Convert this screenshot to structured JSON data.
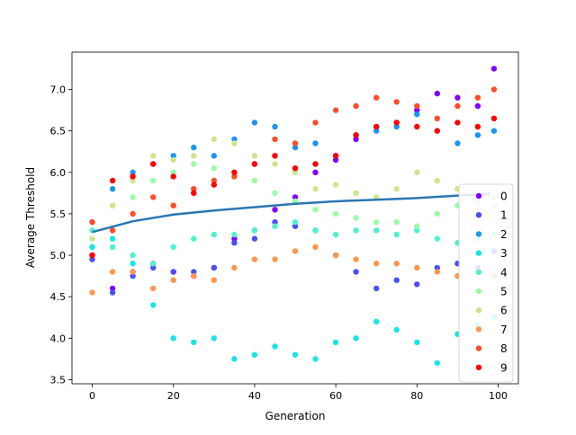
{
  "chart_data": {
    "type": "scatter",
    "title": "",
    "xlabel": "Generation",
    "ylabel": "Average Threshold",
    "xlim": [
      -5,
      105
    ],
    "ylim": [
      3.45,
      7.45
    ],
    "xticks": [
      0,
      20,
      40,
      60,
      80,
      100
    ],
    "yticks": [
      3.5,
      4.0,
      4.5,
      5.0,
      5.5,
      6.0,
      6.5,
      7.0
    ],
    "xtick_labels": [
      "0",
      "20",
      "40",
      "60",
      "80",
      "100"
    ],
    "ytick_labels": [
      "3.5",
      "4.0",
      "4.5",
      "5.0",
      "5.5",
      "6.0",
      "6.5",
      "7.0"
    ],
    "grid": false,
    "legend_position": "right",
    "trend_line": {
      "color": "#2a77b4",
      "x": [
        0,
        10,
        20,
        30,
        40,
        50,
        60,
        70,
        80,
        90,
        98
      ],
      "y": [
        5.28,
        5.41,
        5.49,
        5.54,
        5.58,
        5.62,
        5.65,
        5.67,
        5.69,
        5.72,
        5.74
      ]
    },
    "series": [
      {
        "name": "0",
        "color": "#8000ff",
        "x": [
          0,
          5,
          10,
          15,
          20,
          25,
          30,
          35,
          40,
          45,
          50,
          55,
          60,
          65,
          70,
          75,
          80,
          85,
          90,
          95,
          99
        ],
        "y": [
          5.0,
          4.6,
          4.8,
          4.9,
          4.8,
          4.75,
          4.85,
          5.2,
          5.3,
          5.55,
          5.7,
          6.0,
          6.15,
          6.4,
          6.55,
          6.6,
          6.75,
          6.95,
          6.9,
          6.8,
          7.25
        ]
      },
      {
        "name": "1",
        "color": "#4d4dfc",
        "x": [
          0,
          5,
          10,
          15,
          20,
          25,
          30,
          35,
          40,
          45,
          50,
          55,
          60,
          65,
          70,
          75,
          80,
          85,
          90,
          95,
          99
        ],
        "y": [
          4.95,
          4.55,
          4.75,
          4.85,
          4.8,
          4.8,
          4.85,
          5.15,
          5.2,
          5.4,
          5.35,
          5.3,
          5.0,
          4.8,
          4.6,
          4.7,
          4.65,
          4.85,
          4.9,
          4.85,
          5.05
        ]
      },
      {
        "name": "2",
        "color": "#1996f3",
        "x": [
          0,
          5,
          10,
          15,
          20,
          25,
          30,
          35,
          40,
          45,
          50,
          55,
          60,
          65,
          70,
          75,
          80,
          85,
          90,
          95,
          99
        ],
        "y": [
          5.1,
          5.8,
          6.0,
          6.1,
          6.2,
          6.3,
          6.2,
          6.4,
          6.6,
          6.55,
          6.3,
          6.35,
          6.2,
          6.45,
          6.5,
          6.55,
          6.7,
          6.5,
          6.35,
          6.45,
          6.5
        ]
      },
      {
        "name": "3",
        "color": "#1ae4e6",
        "x": [
          0,
          5,
          10,
          15,
          20,
          25,
          30,
          35,
          40,
          45,
          50,
          55,
          60,
          65,
          70,
          75,
          80,
          85,
          90,
          95,
          99
        ],
        "y": [
          5.1,
          5.2,
          4.9,
          4.4,
          4.0,
          3.95,
          4.0,
          3.75,
          3.8,
          3.9,
          3.8,
          3.75,
          3.95,
          4.0,
          4.2,
          4.1,
          3.95,
          3.7,
          4.05,
          4.15,
          4.25
        ]
      },
      {
        "name": "4",
        "color": "#4df3ce",
        "x": [
          0,
          5,
          10,
          15,
          20,
          25,
          30,
          35,
          40,
          45,
          50,
          55,
          60,
          65,
          70,
          75,
          80,
          85,
          90,
          95,
          99
        ],
        "y": [
          5.3,
          5.1,
          5.0,
          4.9,
          5.1,
          5.2,
          5.25,
          5.25,
          5.3,
          5.35,
          5.4,
          5.3,
          5.25,
          5.3,
          5.3,
          5.25,
          5.3,
          5.2,
          5.15,
          5.2,
          5.25
        ]
      },
      {
        "name": "5",
        "color": "#99fca6",
        "x": [
          0,
          5,
          10,
          15,
          20,
          25,
          30,
          35,
          40,
          45,
          50,
          55,
          60,
          65,
          70,
          75,
          80,
          85,
          90,
          95,
          99
        ],
        "y": [
          5.4,
          5.6,
          5.7,
          5.9,
          6.0,
          6.1,
          6.05,
          6.0,
          5.9,
          5.75,
          5.65,
          5.55,
          5.5,
          5.45,
          5.4,
          5.4,
          5.35,
          5.5,
          5.6,
          5.65,
          5.7
        ]
      },
      {
        "name": "6",
        "color": "#cce68b",
        "x": [
          0,
          5,
          10,
          15,
          20,
          25,
          30,
          35,
          40,
          45,
          50,
          55,
          60,
          65,
          70,
          75,
          80,
          85,
          90,
          95,
          99
        ],
        "y": [
          5.2,
          5.6,
          5.9,
          6.2,
          6.15,
          6.2,
          6.4,
          6.35,
          6.2,
          6.1,
          6.0,
          5.8,
          5.85,
          5.75,
          5.7,
          5.8,
          6.0,
          5.9,
          5.8,
          5.75,
          5.6
        ]
      },
      {
        "name": "7",
        "color": "#ff964f",
        "x": [
          0,
          5,
          10,
          15,
          20,
          25,
          30,
          35,
          40,
          45,
          50,
          55,
          60,
          65,
          70,
          75,
          80,
          85,
          90,
          95,
          99
        ],
        "y": [
          4.55,
          4.8,
          4.8,
          4.6,
          4.7,
          4.75,
          4.7,
          4.85,
          4.95,
          4.95,
          5.05,
          5.1,
          5.0,
          4.95,
          4.9,
          4.9,
          4.85,
          4.8,
          4.75,
          4.8,
          4.75
        ]
      },
      {
        "name": "8",
        "color": "#ff4d27",
        "x": [
          0,
          5,
          10,
          15,
          20,
          25,
          30,
          35,
          40,
          45,
          50,
          55,
          60,
          65,
          70,
          75,
          80,
          85,
          90,
          95,
          99
        ],
        "y": [
          5.4,
          5.3,
          5.5,
          5.7,
          5.6,
          5.8,
          5.9,
          5.95,
          6.1,
          6.4,
          6.35,
          6.6,
          6.75,
          6.8,
          6.9,
          6.85,
          6.8,
          6.65,
          6.8,
          6.9,
          7.0
        ]
      },
      {
        "name": "9",
        "color": "#ff0000",
        "x": [
          0,
          5,
          10,
          15,
          20,
          25,
          30,
          35,
          40,
          45,
          50,
          55,
          60,
          65,
          70,
          75,
          80,
          85,
          90,
          95,
          99
        ],
        "y": [
          5.0,
          5.9,
          5.95,
          6.1,
          5.95,
          5.75,
          5.85,
          6.0,
          6.1,
          6.2,
          6.05,
          6.1,
          6.2,
          6.45,
          6.55,
          6.6,
          6.55,
          6.5,
          6.6,
          6.55,
          6.65
        ]
      }
    ]
  }
}
